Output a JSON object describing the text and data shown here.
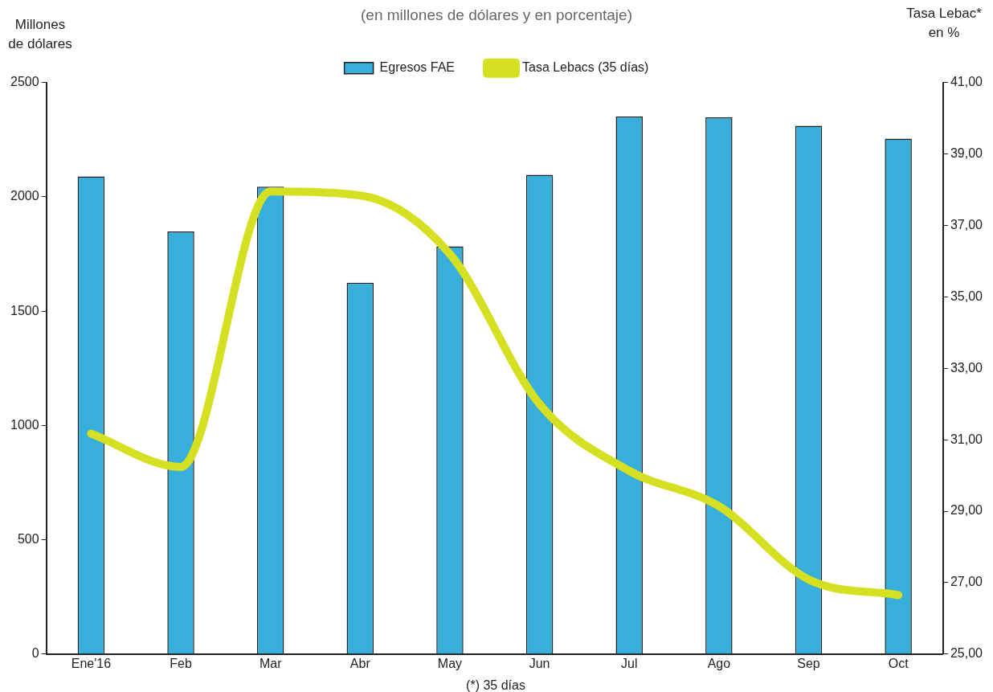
{
  "chart_data": {
    "type": "bar",
    "subtitle": "(en millones de dólares y en porcentaje)",
    "ylabel": "Millones\nde dólares",
    "y2label": "Tasa Lebac*\nen %",
    "annotations": [
      "(*) 35 días"
    ],
    "categories": [
      "Ene'16",
      "Feb",
      "Mar",
      "Abr",
      "May",
      "Jun",
      "Jul",
      "Ago",
      "Sep",
      "Oct"
    ],
    "series": [
      {
        "name": "Egresos FAE",
        "color": "#38aedb",
        "values": [
          2090,
          1849,
          2045,
          1625,
          1784,
          2097,
          2352,
          2348,
          2311,
          2255
        ]
      },
      {
        "name": "Tasa Lebacs (35 días)",
        "type": "line",
        "axis": "y2",
        "color": "#d4e021",
        "values": [
          31.17,
          30.24,
          37.95,
          37.84,
          36.2,
          32.0,
          30.13,
          29.14,
          27.09,
          26.65
        ]
      }
    ],
    "ylim": [
      0,
      2500
    ],
    "yticks": [
      0,
      500,
      1000,
      1500,
      2000,
      2500
    ],
    "y2lim": [
      25,
      41
    ],
    "y2ticks": [
      {
        "value": 25,
        "label": "25,00"
      },
      {
        "value": 27,
        "label": "27,00"
      },
      {
        "value": 29,
        "label": "29,00"
      },
      {
        "value": 31,
        "label": "31,00"
      },
      {
        "value": 33,
        "label": "33,00"
      },
      {
        "value": 35,
        "label": "35,00"
      },
      {
        "value": 37,
        "label": "37,00"
      },
      {
        "value": 39,
        "label": "39,00"
      },
      {
        "value": 41,
        "label": "41,00"
      }
    ],
    "grid": false,
    "legend": "top",
    "marker": "none",
    "line_style": "solid"
  }
}
